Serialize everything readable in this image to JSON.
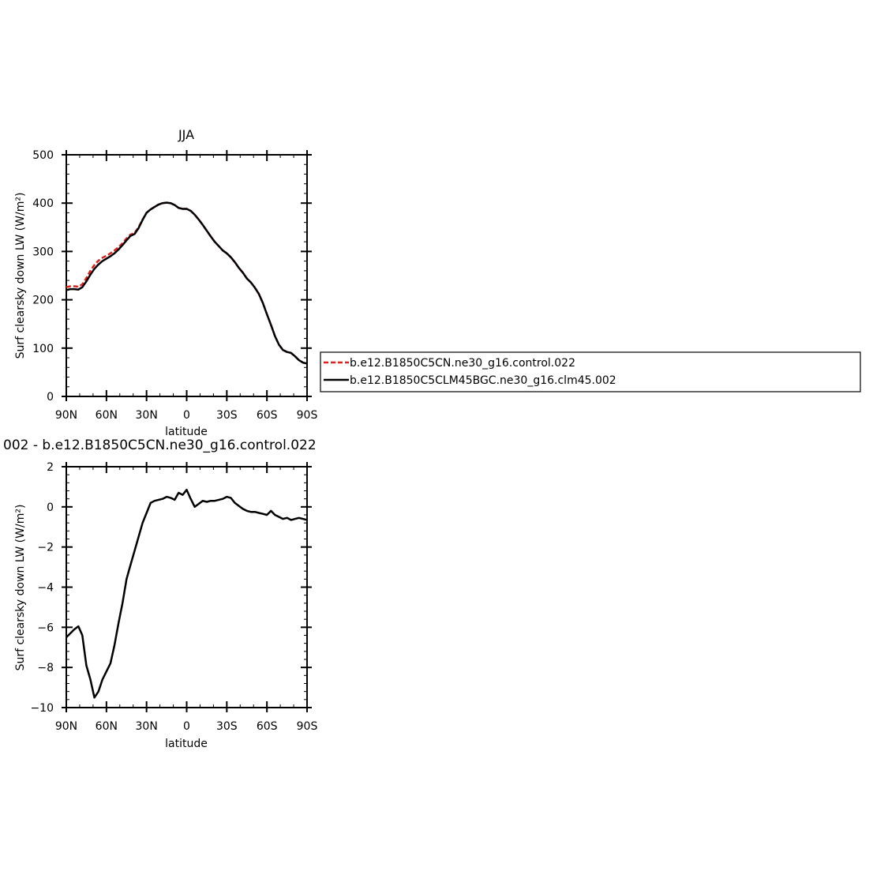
{
  "chart_data": [
    {
      "type": "line",
      "title": "JJA",
      "xlabel": "latitude",
      "ylabel": "Surf clearsky down LW (W/m²)",
      "xlim": [
        90,
        -90
      ],
      "ylim": [
        0,
        500
      ],
      "x_ticks": [
        90,
        60,
        30,
        0,
        -30,
        -60,
        -90
      ],
      "x_tick_labels": [
        "90N",
        "60N",
        "30N",
        "0",
        "30S",
        "60S",
        "90S"
      ],
      "y_ticks": [
        0,
        100,
        200,
        300,
        400,
        500
      ],
      "y_tick_labels": [
        "0",
        "100",
        "200",
        "300",
        "400",
        "500"
      ],
      "legend": "right",
      "series": [
        {
          "name": "b.e12.B1850C5CN.ne30_g16.control.022",
          "color": "#e0201c",
          "dash": "dashed",
          "x": [
            90,
            87,
            84,
            81,
            78,
            75,
            72,
            69,
            66,
            63,
            60,
            57,
            54,
            51,
            48,
            45,
            42,
            39,
            36,
            33,
            30,
            27,
            24,
            21,
            18,
            15,
            12,
            9,
            6,
            3,
            0,
            -3,
            -6,
            -9,
            -12,
            -15,
            -18,
            -21,
            -24,
            -27,
            -30,
            -33,
            -36,
            -39,
            -42,
            -45,
            -48,
            -51,
            -54,
            -57,
            -60,
            -63,
            -66,
            -69,
            -72,
            -75,
            -78,
            -81,
            -84,
            -87,
            -90
          ],
          "values": [
            226,
            228,
            228,
            227,
            232,
            245,
            260,
            272,
            281,
            287,
            291,
            296,
            302,
            309,
            317,
            327,
            335,
            338,
            350,
            366,
            380,
            387,
            392,
            397,
            400,
            401,
            400,
            396,
            390,
            388,
            388,
            384,
            376,
            366,
            355,
            343,
            331,
            320,
            311,
            302,
            296,
            288,
            278,
            266,
            256,
            244,
            236,
            225,
            212,
            193,
            170,
            148,
            125,
            107,
            96,
            92,
            90,
            83,
            75,
            70,
            68
          ]
        },
        {
          "name": "b.e12.B1850C5CLM45BGC.ne30_g16.clm45.002",
          "color": "#000000",
          "dash": "solid",
          "x": [
            90,
            87,
            84,
            81,
            78,
            75,
            72,
            69,
            66,
            63,
            60,
            57,
            54,
            51,
            48,
            45,
            42,
            39,
            36,
            33,
            30,
            27,
            24,
            21,
            18,
            15,
            12,
            9,
            6,
            3,
            0,
            -3,
            -6,
            -9,
            -12,
            -15,
            -18,
            -21,
            -24,
            -27,
            -30,
            -33,
            -36,
            -39,
            -42,
            -45,
            -48,
            -51,
            -54,
            -57,
            -60,
            -63,
            -66,
            -69,
            -72,
            -75,
            -78,
            -81,
            -84,
            -87,
            -90
          ],
          "values": [
            220,
            222,
            222,
            221,
            226,
            238,
            252,
            264,
            273,
            280,
            285,
            290,
            296,
            304,
            313,
            323,
            332,
            336,
            348,
            365,
            380,
            387,
            392,
            397,
            400,
            401,
            400,
            396,
            390,
            388,
            388,
            384,
            376,
            366,
            355,
            343,
            331,
            320,
            311,
            302,
            296,
            288,
            278,
            266,
            256,
            244,
            236,
            225,
            212,
            193,
            170,
            148,
            125,
            107,
            96,
            92,
            90,
            83,
            75,
            70,
            68
          ]
        }
      ]
    },
    {
      "type": "line",
      "title": "002 - b.e12.B1850C5CN.ne30_g16.control.022",
      "xlabel": "latitude",
      "ylabel": "Surf clearsky down LW (W/m²)",
      "xlim": [
        90,
        -90
      ],
      "ylim": [
        -10,
        2
      ],
      "x_ticks": [
        90,
        60,
        30,
        0,
        -30,
        -60,
        -90
      ],
      "x_tick_labels": [
        "90N",
        "60N",
        "30N",
        "0",
        "30S",
        "60S",
        "90S"
      ],
      "y_ticks": [
        -10,
        -8,
        -6,
        -4,
        -2,
        0,
        2
      ],
      "y_tick_labels": [
        "−10",
        "−8",
        "−6",
        "−4",
        "−2",
        "0",
        "2"
      ],
      "series": [
        {
          "color": "#000000",
          "x": [
            90,
            87,
            84,
            81,
            78,
            75,
            72,
            69,
            66,
            63,
            60,
            57,
            54,
            51,
            48,
            45,
            42,
            39,
            36,
            33,
            30,
            27,
            24,
            21,
            18,
            15,
            12,
            9,
            6,
            3,
            0,
            -3,
            -6,
            -9,
            -12,
            -15,
            -18,
            -21,
            -24,
            -27,
            -30,
            -33,
            -36,
            -39,
            -42,
            -45,
            -48,
            -51,
            -54,
            -57,
            -60,
            -63,
            -66,
            -69,
            -72,
            -75,
            -78,
            -81,
            -84,
            -87,
            -90
          ],
          "values": [
            -6.5,
            -6.3,
            -6.1,
            -5.95,
            -6.4,
            -7.9,
            -8.6,
            -9.5,
            -9.2,
            -8.6,
            -8.2,
            -7.8,
            -6.9,
            -5.8,
            -4.8,
            -3.6,
            -2.9,
            -2.2,
            -1.5,
            -0.8,
            -0.3,
            0.2,
            0.3,
            0.35,
            0.4,
            0.5,
            0.45,
            0.35,
            0.7,
            0.6,
            0.85,
            0.4,
            0.0,
            0.15,
            0.3,
            0.25,
            0.3,
            0.3,
            0.35,
            0.4,
            0.5,
            0.45,
            0.2,
            0.05,
            -0.1,
            -0.2,
            -0.25,
            -0.25,
            -0.3,
            -0.35,
            -0.4,
            -0.2,
            -0.4,
            -0.5,
            -0.6,
            -0.55,
            -0.65,
            -0.6,
            -0.55,
            -0.6,
            -0.65
          ]
        }
      ]
    }
  ]
}
